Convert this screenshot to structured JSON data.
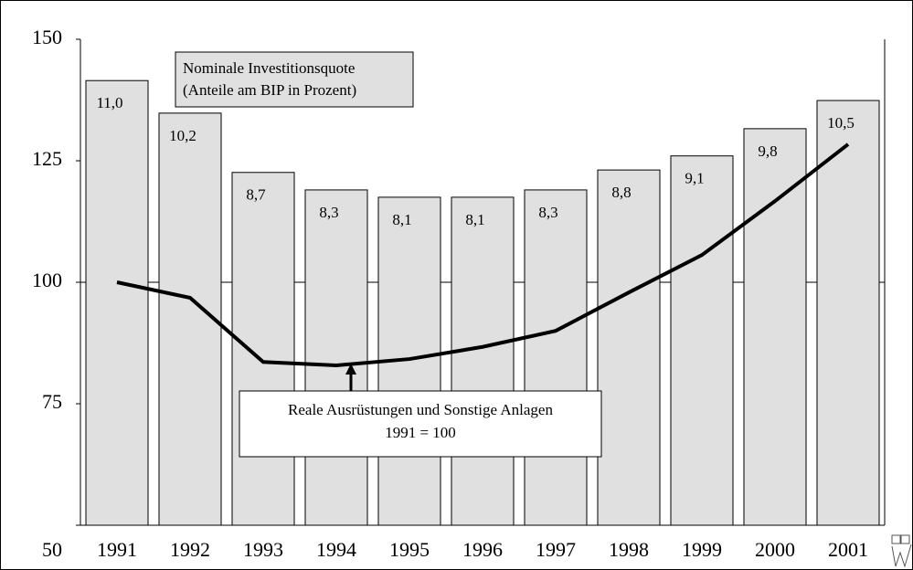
{
  "chart_data": {
    "type": "bar_line",
    "categories": [
      "1991",
      "1992",
      "1993",
      "1994",
      "1995",
      "1996",
      "1997",
      "1998",
      "1999",
      "2000",
      "2001"
    ],
    "bars": {
      "color": "#e0e0e0",
      "values": [
        141.5,
        134.8,
        122.6,
        119,
        117.5,
        117.5,
        119,
        123.1,
        126,
        131.6,
        137.4
      ],
      "labels": [
        "11,0",
        "10,2",
        "8,7",
        "8,3",
        "8,1",
        "8,1",
        "8,3",
        "8,8",
        "9,1",
        "9,8",
        "10,5"
      ]
    },
    "line": {
      "color": "#000000",
      "values": [
        100,
        96.8,
        83.6,
        82.9,
        84.2,
        86.7,
        90,
        97.9,
        105.6,
        116.7,
        128.4
      ]
    },
    "ylim": [
      50,
      150
    ],
    "yticks": [
      50,
      75,
      100,
      125,
      150
    ],
    "hline": 100,
    "annotations": [
      "Nominale Investitionsquote",
      "(Anteile  am BIP in Prozent)",
      "Reale Ausrüstungen und Sonstige Anlagen",
      "1991 = 100"
    ]
  }
}
